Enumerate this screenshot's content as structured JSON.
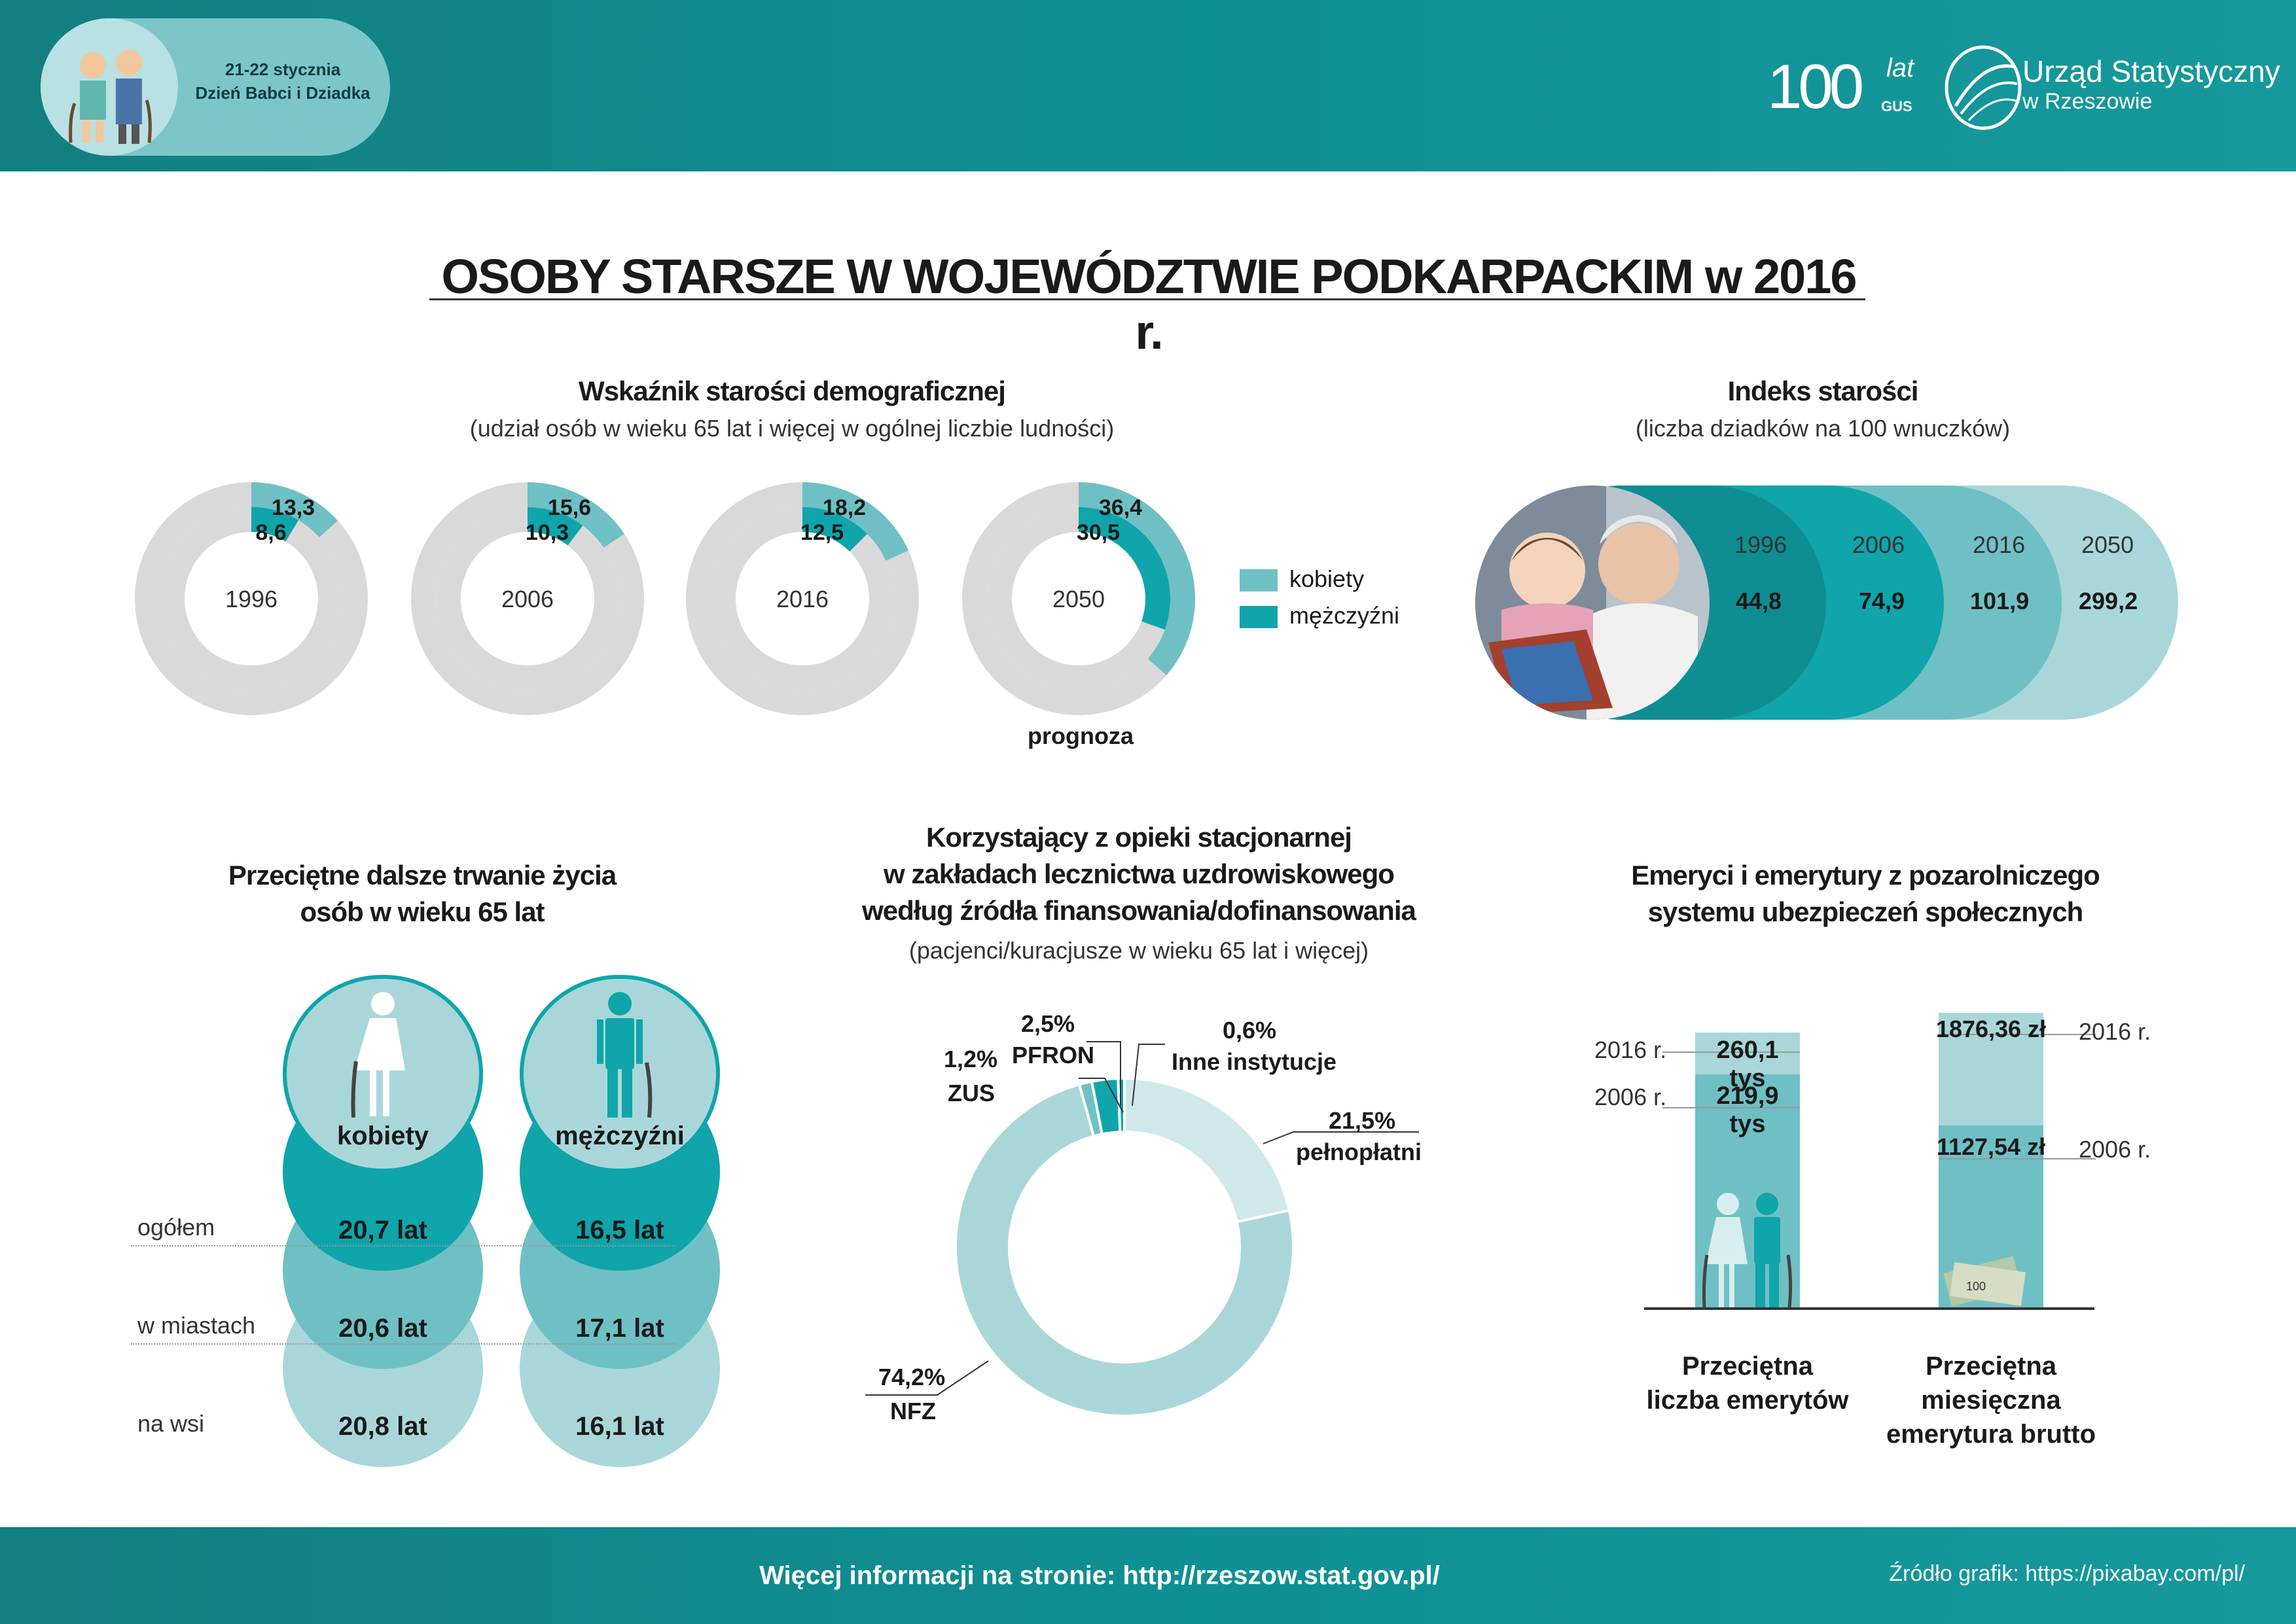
{
  "header": {
    "badge_line1": "21-22 stycznia",
    "badge_line2": "Dzień Babci i Dziadka",
    "gus_logo_number": "100",
    "gus_logo_lat": "lat",
    "gus_logo_gus": "GUS",
    "office_name": "Urząd Statystyczny",
    "office_city": "w Rzeszowie"
  },
  "title": "OSOBY STARSZE W WOJEWÓDZTWIE PODKARPACKIM w 2016 r.",
  "colors": {
    "teal_dark": "#0fa5aa",
    "teal_light": "#6fc0c4",
    "teal_pale": "#a9d7d9",
    "teal_paler": "#cfe9ea",
    "grey": "#d9d9d9"
  },
  "chart_data": [
    {
      "type": "donut",
      "title": "Wskaźnik starości demograficznej",
      "subtitle": "(udział osób w wieku 65 lat i więcej w ogólnej liczbie ludności)",
      "categories": [
        "1996",
        "2006",
        "2016",
        "2050"
      ],
      "series": [
        {
          "name": "kobiety",
          "values": [
            13.3,
            15.6,
            18.2,
            36.4
          ],
          "labels": [
            "13,3",
            "15,6",
            "18,2",
            "36,4"
          ]
        },
        {
          "name": "mężczyźni",
          "values": [
            8.6,
            10.3,
            12.5,
            30.5
          ],
          "labels": [
            "8,6",
            "10,3",
            "12,5",
            "30,5"
          ]
        }
      ],
      "note": "prognoza",
      "legend_position": "right"
    },
    {
      "type": "bar",
      "title": "Indeks starości",
      "subtitle": "(liczba dziadków na 100 wnuczków)",
      "categories": [
        "1996",
        "2006",
        "2016",
        "2050"
      ],
      "values": [
        44.8,
        74.9,
        101.9,
        299.2
      ],
      "value_labels": [
        "44,8",
        "74,9",
        "101,9",
        "299,2"
      ]
    },
    {
      "type": "table",
      "title": "Przeciętne dalsze trwanie życia osób w wieku 65 lat",
      "columns": [
        "kobiety",
        "mężczyźni"
      ],
      "rows": [
        {
          "label": "ogółem",
          "values": [
            "20,7 lat",
            "16,5 lat"
          ]
        },
        {
          "label": "w miastach",
          "values": [
            "20,6 lat",
            "17,1 lat"
          ]
        },
        {
          "label": "na wsi",
          "values": [
            "20,8 lat",
            "16,1 lat"
          ]
        }
      ]
    },
    {
      "type": "pie",
      "title": "Korzystający z opieki stacjonarnej w zakładach lecznictwa uzdrowiskowego według źródła finansowania/dofinansowania",
      "title_lines": [
        "Korzystający z opieki stacjonarnej",
        "w zakładach lecznictwa uzdrowiskowego",
        "według źródła finansowania/dofinansowania"
      ],
      "subtitle": "(pacjenci/kuracjusze w wieku 65 lat i więcej)",
      "slices": [
        {
          "name": "pełnopłatni",
          "value": 21.5,
          "label": "21,5%"
        },
        {
          "name": "NFZ",
          "value": 74.2,
          "label": "74,2%"
        },
        {
          "name": "ZUS",
          "value": 1.2,
          "label": "1,2%"
        },
        {
          "name": "PFRON",
          "value": 2.5,
          "label": "2,5%"
        },
        {
          "name": "Inne instytucje",
          "value": 0.6,
          "label": "0,6%"
        }
      ]
    },
    {
      "type": "bar",
      "title": "Emeryci i emerytury z pozarolniczego systemu ubezpieczeń społecznych",
      "title_lines": [
        "Emeryci i emerytury z pozarolniczego",
        "systemu ubezpieczeń społecznych"
      ],
      "groups": [
        {
          "name": "Przeciętna liczba emerytów",
          "name_lines": [
            "Przeciętna",
            "liczba emerytów"
          ],
          "unit": "tys",
          "points": [
            {
              "year": "2016 r.",
              "value": 260.1,
              "label": "260,1 tys"
            },
            {
              "year": "2006 r.",
              "value": 219.9,
              "label": "219,9 tys"
            }
          ]
        },
        {
          "name": "Przeciętna miesięczna emerytura brutto",
          "name_lines": [
            "Przeciętna miesięczna",
            "emerytura brutto"
          ],
          "unit": "zł",
          "points": [
            {
              "year": "2016 r.",
              "value": 1876.36,
              "label": "1876,36 zł"
            },
            {
              "year": "2006 r.",
              "value": 1127.54,
              "label": "1127,54 zł"
            }
          ]
        }
      ]
    }
  ],
  "footer": {
    "more_info": "Więcej informacji na stronie: http://rzeszow.stat.gov.pl/",
    "source": "Źródło grafik: https://pixabay.com/pl/"
  }
}
